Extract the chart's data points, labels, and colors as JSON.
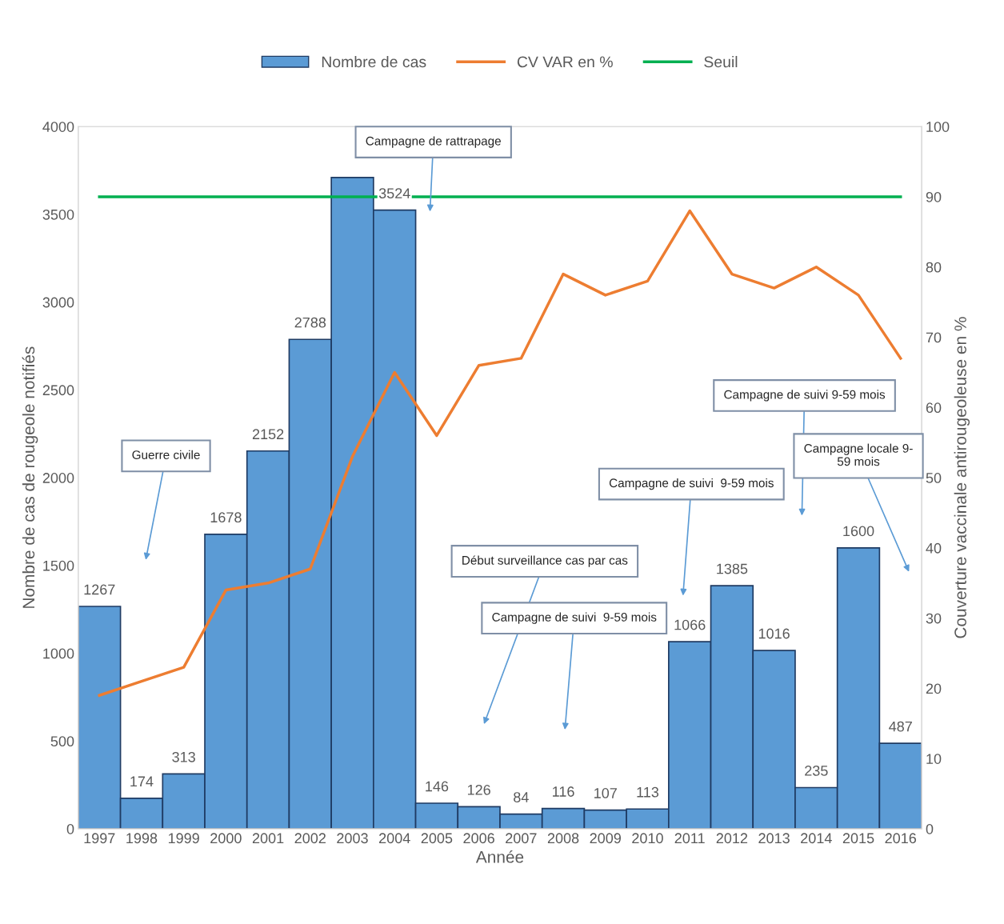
{
  "chart_data": {
    "type": "bar",
    "xlabel": "Année",
    "ylabel": "Nombre de cas de rougeole notifiés",
    "y2label": "Couverture vaccinale antirougeoleuse en %",
    "categories": [
      "1997",
      "1998",
      "1999",
      "2000",
      "2001",
      "2002",
      "2003",
      "2004",
      "2005",
      "2006",
      "2007",
      "2008",
      "2009",
      "2010",
      "2011",
      "2012",
      "2013",
      "2014",
      "2015",
      "2016"
    ],
    "series": [
      {
        "name": "Nombre de cas",
        "color": "#5b9bd5",
        "values": [
          1267,
          174,
          313,
          1678,
          2152,
          2788,
          3710,
          3524,
          146,
          126,
          84,
          116,
          107,
          113,
          1066,
          1385,
          1016,
          235,
          1600,
          487
        ],
        "value_labels": [
          "1267",
          "174",
          "313",
          "1678",
          "2152",
          "2788",
          null,
          "3524",
          "146",
          "126",
          "84",
          "116",
          "107",
          "113",
          "1066",
          "1385",
          "1016",
          "235",
          "1600",
          "487"
        ]
      },
      {
        "name": "CV VAR en %",
        "type": "line",
        "axis": "y2",
        "color": "#ed7d31",
        "values": [
          19,
          21,
          23,
          34,
          35,
          37,
          53,
          65,
          56,
          66,
          67,
          79,
          76,
          78,
          88,
          79,
          77,
          80,
          76,
          67
        ]
      },
      {
        "name": "Seuil",
        "type": "line",
        "axis": "y2",
        "color": "#00b050",
        "values": [
          90,
          90,
          90,
          90,
          90,
          90,
          90,
          90,
          90,
          90,
          90,
          90,
          90,
          90,
          90,
          90,
          90,
          90,
          90,
          90
        ]
      }
    ],
    "ylim": [
      0,
      4000
    ],
    "yticks": [
      0,
      500,
      1000,
      1500,
      2000,
      2500,
      3000,
      3500,
      4000
    ],
    "y2lim": [
      0,
      100
    ],
    "y2ticks": [
      0,
      10,
      20,
      30,
      40,
      50,
      60,
      70,
      80,
      90,
      100
    ],
    "legend": "top",
    "grid": false,
    "marker": "none",
    "line_style": "solid",
    "annotations": [
      "Guerre civile",
      "Campagne de rattrapage",
      "Début surveillance cas par cas",
      "Campagne de suivi  9-59 mois",
      "Campagne de suivi  9-59 mois",
      "Campagne de suivi 9-59 mois",
      "Campagne locale 9-\n59 mois"
    ]
  }
}
